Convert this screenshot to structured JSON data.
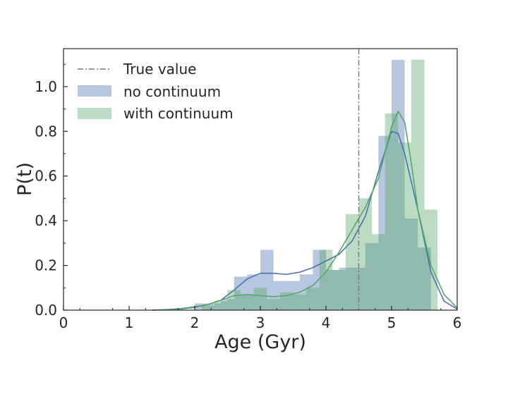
{
  "chart_data": {
    "type": "histogram",
    "xlabel": "Age (Gyr)",
    "ylabel": "P(t)",
    "xlim": [
      0,
      6
    ],
    "ylim": [
      0,
      1.17
    ],
    "xticks": [
      "0",
      "1",
      "2",
      "3",
      "4",
      "5",
      "6"
    ],
    "yticks": [
      "0.0",
      "0.2",
      "0.4",
      "0.6",
      "0.8",
      "1.0"
    ],
    "grid": false,
    "legend_position": "top-left",
    "true_value": 4.5,
    "legend": {
      "true_value": "True value",
      "no_continuum": "no continuum",
      "with_continuum": "with continuum"
    },
    "colors": {
      "no_continuum": "#4c72b0",
      "with_continuum": "#55a868",
      "true_value": "#7a7a7a"
    },
    "series": [
      {
        "name": "no continuum",
        "bins": [
          [
            2.0,
            2.2,
            0.03
          ],
          [
            2.2,
            2.4,
            0.03
          ],
          [
            2.4,
            2.6,
            0.05
          ],
          [
            2.6,
            2.8,
            0.15
          ],
          [
            2.8,
            3.0,
            0.16
          ],
          [
            3.0,
            3.2,
            0.27
          ],
          [
            3.2,
            3.4,
            0.13
          ],
          [
            3.4,
            3.6,
            0.13
          ],
          [
            3.6,
            3.8,
            0.16
          ],
          [
            3.8,
            4.0,
            0.27
          ],
          [
            4.0,
            4.2,
            0.18
          ],
          [
            4.2,
            4.4,
            0.19
          ],
          [
            4.4,
            4.6,
            0.19
          ],
          [
            4.6,
            4.8,
            0.3
          ],
          [
            4.8,
            5.0,
            0.78
          ],
          [
            5.0,
            5.2,
            1.12
          ],
          [
            5.2,
            5.4,
            0.41
          ],
          [
            5.4,
            5.6,
            0.28
          ]
        ],
        "kde": [
          [
            1.35,
            0.0
          ],
          [
            1.6,
            0.003
          ],
          [
            1.8,
            0.007
          ],
          [
            2.0,
            0.015
          ],
          [
            2.2,
            0.025
          ],
          [
            2.4,
            0.045
          ],
          [
            2.6,
            0.09
          ],
          [
            2.8,
            0.14
          ],
          [
            3.0,
            0.165
          ],
          [
            3.2,
            0.165
          ],
          [
            3.4,
            0.16
          ],
          [
            3.6,
            0.17
          ],
          [
            3.8,
            0.19
          ],
          [
            4.0,
            0.22
          ],
          [
            4.2,
            0.25
          ],
          [
            4.4,
            0.31
          ],
          [
            4.6,
            0.42
          ],
          [
            4.8,
            0.62
          ],
          [
            5.0,
            0.8
          ],
          [
            5.1,
            0.79
          ],
          [
            5.2,
            0.7
          ],
          [
            5.4,
            0.45
          ],
          [
            5.6,
            0.17
          ],
          [
            5.8,
            0.04
          ],
          [
            6.0,
            0.005
          ]
        ]
      },
      {
        "name": "with continuum",
        "bins": [
          [
            2.1,
            2.3,
            0.02
          ],
          [
            2.3,
            2.5,
            0.04
          ],
          [
            2.5,
            2.7,
            0.09
          ],
          [
            2.7,
            2.9,
            0.07
          ],
          [
            2.9,
            3.1,
            0.1
          ],
          [
            3.1,
            3.3,
            0.05
          ],
          [
            3.3,
            3.5,
            0.08
          ],
          [
            3.5,
            3.7,
            0.07
          ],
          [
            3.7,
            3.9,
            0.1
          ],
          [
            3.9,
            4.1,
            0.27
          ],
          [
            4.1,
            4.3,
            0.18
          ],
          [
            4.3,
            4.5,
            0.43
          ],
          [
            4.5,
            4.7,
            0.5
          ],
          [
            4.7,
            4.9,
            0.34
          ],
          [
            4.9,
            5.1,
            0.88
          ],
          [
            5.1,
            5.3,
            0.75
          ],
          [
            5.3,
            5.5,
            1.12
          ],
          [
            5.5,
            5.7,
            0.45
          ]
        ],
        "kde": [
          [
            1.35,
            0.0
          ],
          [
            1.6,
            0.002
          ],
          [
            1.8,
            0.005
          ],
          [
            2.0,
            0.012
          ],
          [
            2.2,
            0.025
          ],
          [
            2.4,
            0.045
          ],
          [
            2.6,
            0.065
          ],
          [
            2.8,
            0.07
          ],
          [
            3.0,
            0.065
          ],
          [
            3.2,
            0.06
          ],
          [
            3.4,
            0.065
          ],
          [
            3.6,
            0.08
          ],
          [
            3.8,
            0.11
          ],
          [
            4.0,
            0.17
          ],
          [
            4.2,
            0.26
          ],
          [
            4.4,
            0.36
          ],
          [
            4.6,
            0.46
          ],
          [
            4.8,
            0.59
          ],
          [
            5.0,
            0.82
          ],
          [
            5.1,
            0.89
          ],
          [
            5.2,
            0.84
          ],
          [
            5.3,
            0.66
          ],
          [
            5.4,
            0.45
          ],
          [
            5.6,
            0.2
          ],
          [
            5.8,
            0.07
          ],
          [
            6.0,
            0.01
          ]
        ]
      }
    ]
  }
}
